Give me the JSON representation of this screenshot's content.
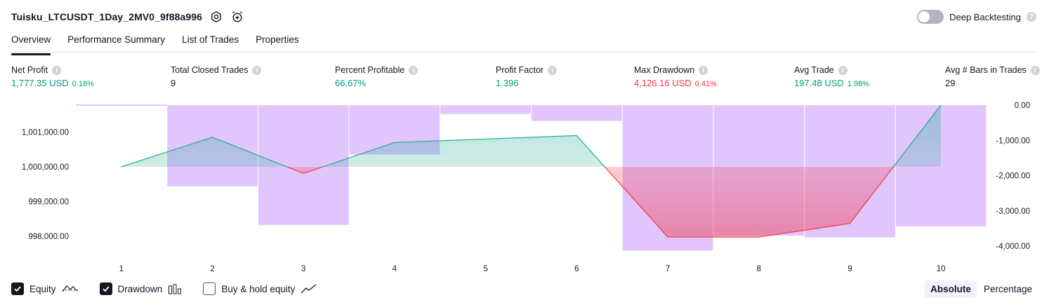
{
  "header": {
    "title": "Tuisku_LTCUSDT_1Day_2MV0_9f88a996",
    "settings_icon": "hexagon-gear-icon",
    "alert_icon": "alarm-clock-plus-icon"
  },
  "deep_backtesting": {
    "label": "Deep Backtesting",
    "enabled": false,
    "help": "?"
  },
  "tabs": [
    {
      "label": "Overview",
      "active": true
    },
    {
      "label": "Performance Summary",
      "active": false
    },
    {
      "label": "List of Trades",
      "active": false
    },
    {
      "label": "Properties",
      "active": false
    }
  ],
  "metrics": {
    "net_profit": {
      "label": "Net Profit",
      "value": "1,777.35 USD",
      "sub": "0.18%"
    },
    "total_closed_trades": {
      "label": "Total Closed Trades",
      "value": "9"
    },
    "percent_profitable": {
      "label": "Percent Profitable",
      "value": "66.67%"
    },
    "profit_factor": {
      "label": "Profit Factor",
      "value": "1.396"
    },
    "max_drawdown": {
      "label": "Max Drawdown",
      "value": "4,126.16 USD",
      "sub": "0.41%"
    },
    "avg_trade": {
      "label": "Avg Trade",
      "value": "197.48 USD",
      "sub": "1.98%"
    },
    "avg_bars": {
      "label": "Avg # Bars in Trades",
      "value": "29"
    }
  },
  "colors": {
    "positive": "#089981",
    "negative": "#f23645",
    "drawdown_bar": "#e1c6fd",
    "equity_up": "#22ab94",
    "equity_down": "#f23645"
  },
  "chart_data": {
    "type": "line",
    "x": [
      1,
      2,
      3,
      4,
      5,
      6,
      7,
      8,
      9,
      10
    ],
    "x_ticks": [
      "1",
      "2",
      "3",
      "4",
      "5",
      "6",
      "7",
      "8",
      "9",
      "10"
    ],
    "series": [
      {
        "name": "Equity",
        "axis": "left",
        "values": [
          1000000.0,
          1000850,
          999810,
          1000700,
          1000800,
          1000900,
          997980,
          997980,
          998370,
          1001777.35
        ]
      },
      {
        "name": "Drawdown",
        "axis": "right",
        "type": "bar",
        "values": [
          0,
          -2300,
          -3400,
          -1400,
          -250,
          -450,
          -4126.16,
          -3700,
          -3750,
          -3440
        ]
      }
    ],
    "left_axis": {
      "ticks": [
        "1,001,000.00",
        "1,000,000.00",
        "999,000.00",
        "998,000.00"
      ],
      "tick_values": [
        1001000,
        1000000,
        999000,
        998000
      ]
    },
    "right_axis": {
      "ticks": [
        "0.00",
        "-1,000.00",
        "-2,000.00",
        "-3,000.00",
        "-4,000.00"
      ],
      "tick_values": [
        0,
        -1000,
        -2000,
        -3000,
        -4000
      ]
    },
    "baseline": 1000000
  },
  "legend": {
    "equity": {
      "label": "Equity",
      "checked": true,
      "icon": "equity-line-icon"
    },
    "drawdown": {
      "label": "Drawdown",
      "checked": true,
      "icon": "drawdown-bars-icon"
    },
    "buy_hold": {
      "label": "Buy & hold equity",
      "checked": false,
      "icon": "buy-hold-line-icon"
    }
  },
  "mode": {
    "absolute": "Absolute",
    "percentage": "Percentage",
    "selected": "Absolute"
  }
}
